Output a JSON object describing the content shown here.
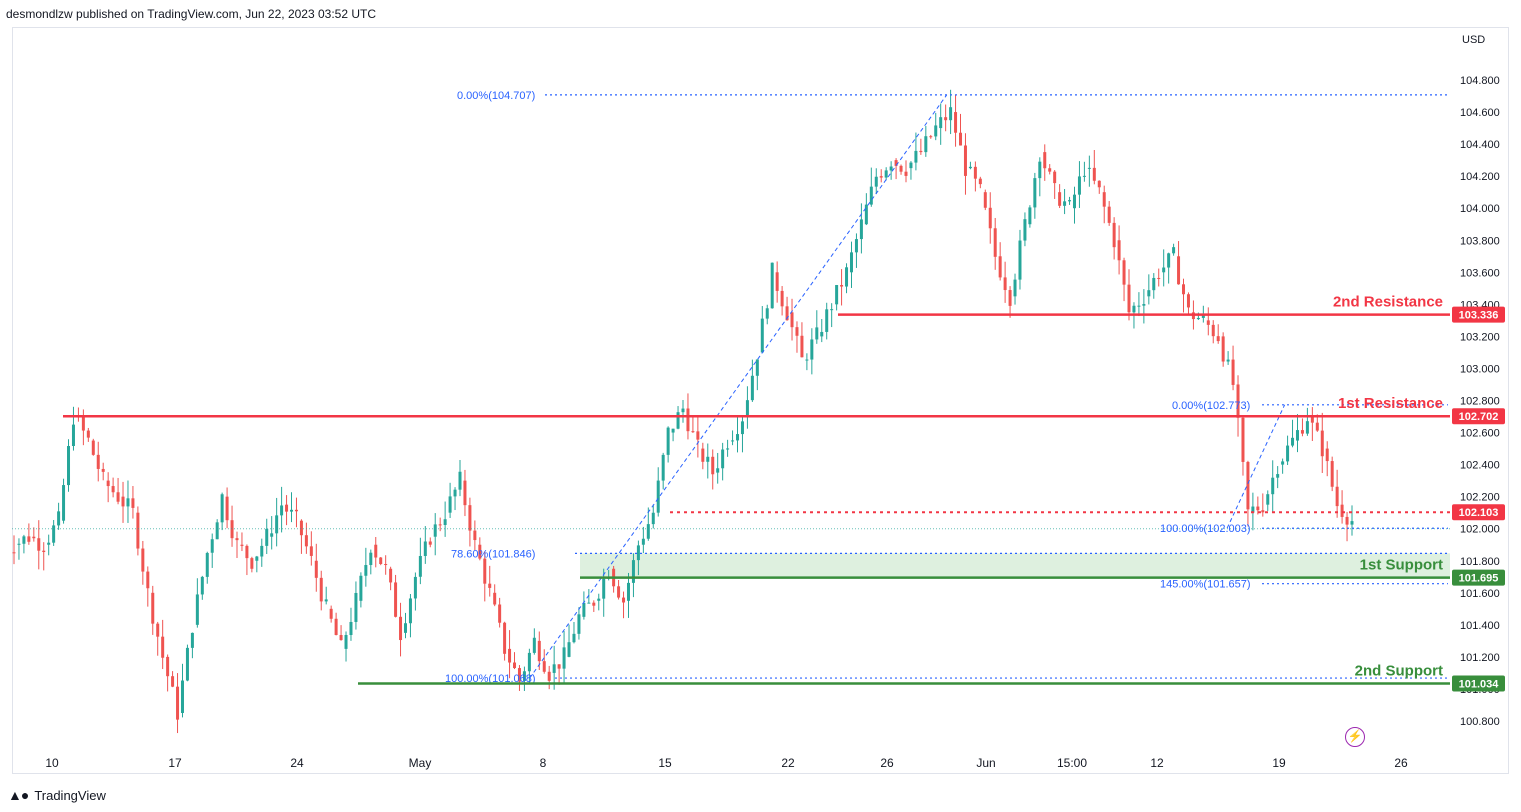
{
  "header": {
    "publisher": "desmondlzw published on TradingView.com, Jun 22, 2023 03:52 UTC"
  },
  "footer": {
    "brand": "TradingView",
    "logo_icon": "tradingview-logo-icon"
  },
  "colors": {
    "up": "#26a69a",
    "down": "#ef5350",
    "resistance": "#f23645",
    "support": "#388e3c",
    "fib": "#2962ff",
    "grid": "#f0f3fa"
  },
  "chart_data": {
    "type": "candlestick",
    "currency": "USD",
    "ylim": [
      100.6,
      104.9
    ],
    "y_ticks": [
      "104.800",
      "104.600",
      "104.400",
      "104.200",
      "104.000",
      "103.800",
      "103.600",
      "103.400",
      "103.200",
      "103.000",
      "102.800",
      "102.600",
      "102.400",
      "102.200",
      "102.000",
      "101.800",
      "101.600",
      "101.400",
      "101.200",
      "101.000",
      "100.800"
    ],
    "x_ticks": [
      "10",
      "17",
      "24",
      "May",
      "8",
      "15",
      "22",
      "26",
      "Jun",
      "15:00",
      "12",
      "19",
      "26"
    ],
    "levels": [
      {
        "name": "2nd Resistance",
        "value": 103.336,
        "label": "103.336",
        "kind": "resistance"
      },
      {
        "name": "1st Resistance",
        "value": 102.702,
        "label": "102.702",
        "kind": "resistance"
      },
      {
        "name": "",
        "value": 102.103,
        "label": "102.103",
        "kind": "pivot"
      },
      {
        "name": "1st Support",
        "value": 101.695,
        "label": "101.695",
        "kind": "support"
      },
      {
        "name": "2nd Support",
        "value": 101.034,
        "label": "101.034",
        "kind": "support"
      }
    ],
    "fib_labels": [
      {
        "text": "0.00%(104.707)",
        "value": 104.707
      },
      {
        "text": "78.60%(101.846)",
        "value": 101.846
      },
      {
        "text": "100.00%(101.068)",
        "value": 101.068
      },
      {
        "text": "0.00%(102.773)",
        "value": 102.773
      },
      {
        "text": "100.00%(102.003)",
        "value": 102.003
      },
      {
        "text": "145.00%(101.657)",
        "value": 101.657
      }
    ],
    "support_zone": [
      101.695,
      101.846
    ],
    "close_series": [
      101.9,
      101.95,
      101.9,
      102.05,
      102.7,
      102.55,
      102.3,
      102.2,
      102.1,
      101.6,
      101.2,
      100.85,
      101.4,
      101.85,
      102.2,
      101.9,
      101.8,
      101.95,
      102.15,
      102.05,
      101.8,
      101.5,
      101.25,
      101.55,
      101.9,
      101.75,
      101.35,
      101.7,
      101.95,
      102.1,
      102.3,
      101.9,
      101.6,
      101.25,
      101.05,
      101.3,
      101.1,
      101.2,
      101.45,
      101.55,
      101.75,
      101.55,
      101.9,
      102.1,
      102.6,
      102.75,
      102.5,
      102.35,
      102.55,
      102.7,
      103.1,
      103.6,
      103.35,
      103.05,
      103.2,
      103.4,
      103.6,
      103.9,
      104.2,
      104.3,
      104.25,
      104.35,
      104.5,
      104.6,
      104.25,
      104.1,
      103.7,
      103.45,
      103.9,
      104.35,
      104.1,
      104.0,
      104.25,
      104.1,
      103.8,
      103.35,
      103.45,
      103.6,
      103.7,
      103.35,
      103.3,
      103.2,
      102.9,
      102.1,
      102.15,
      102.4,
      102.55,
      102.7,
      102.5,
      102.15,
      102.05
    ],
    "fib_trend_lines": [
      {
        "from": [
          0.36,
          101.068
        ],
        "to": [
          0.65,
          104.707
        ]
      },
      {
        "from": [
          0.845,
          102.003
        ],
        "to": [
          0.885,
          102.773
        ]
      }
    ]
  }
}
